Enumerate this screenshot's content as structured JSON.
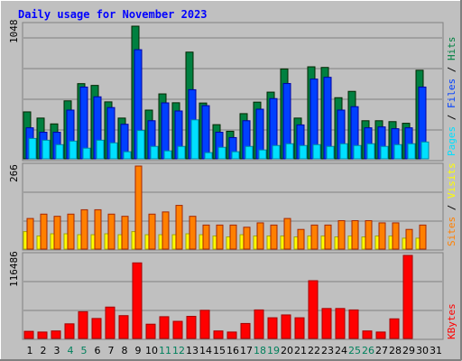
{
  "title": "Daily usage for November 2023",
  "colors": {
    "background": "#c0c0c0",
    "hits": "#008040",
    "files": "#0040ff",
    "pages": "#00e0ff",
    "visits": "#ffff00",
    "sites": "#ff8000",
    "kbytes": "#ff0000",
    "title": "#0000ff",
    "weekend_day": "#00805c",
    "grid": "#808080"
  },
  "chart_data": [
    {
      "type": "bar",
      "name": "hits-files-pages",
      "categories": [
        "1",
        "2",
        "3",
        "4",
        "5",
        "6",
        "7",
        "8",
        "9",
        "10",
        "11",
        "12",
        "13",
        "14",
        "15",
        "16",
        "17",
        "18",
        "19",
        "20",
        "21",
        "22",
        "23",
        "24",
        "25",
        "26",
        "27",
        "28",
        "29",
        "30",
        "31"
      ],
      "weekend_days": [
        "4",
        "5",
        "11",
        "12",
        "18",
        "19",
        "25",
        "26"
      ],
      "y_max_label": "1048",
      "ylim": [
        0,
        1048
      ],
      "legend": [
        {
          "name": "Hits",
          "color_key": "hits"
        },
        {
          "name": "Files",
          "color_key": "files"
        },
        {
          "name": "Pages",
          "color_key": "pages"
        }
      ],
      "series": [
        {
          "name": "Hits",
          "values": [
            371,
            322,
            276,
            458,
            594,
            580,
            450,
            322,
            1048,
            385,
            513,
            443,
            843,
            441,
            270,
            218,
            357,
            448,
            527,
            710,
            322,
            727,
            722,
            483,
            533,
            301,
            301,
            294,
            281,
            700,
            0
          ]
        },
        {
          "name": "Files",
          "values": [
            245,
            210,
            210,
            385,
            567,
            490,
            405,
            273,
            862,
            301,
            442,
            378,
            546,
            420,
            210,
            168,
            301,
            392,
            476,
            595,
            268,
            630,
            644,
            385,
            412,
            245,
            252,
            238,
            245,
            567,
            0
          ]
        },
        {
          "name": "Pages",
          "values": [
            161,
            147,
            112,
            140,
            84,
            147,
            126,
            56,
            224,
            98,
            63,
            98,
            308,
            49,
            91,
            56,
            98,
            70,
            105,
            119,
            105,
            112,
            98,
            119,
            105,
            119,
            98,
            112,
            119,
            133,
            0
          ]
        }
      ]
    },
    {
      "type": "bar",
      "name": "visits-sites",
      "categories": [
        "1",
        "2",
        "3",
        "4",
        "5",
        "6",
        "7",
        "8",
        "9",
        "10",
        "11",
        "12",
        "13",
        "14",
        "15",
        "16",
        "17",
        "18",
        "19",
        "20",
        "21",
        "22",
        "23",
        "24",
        "25",
        "26",
        "27",
        "28",
        "29",
        "30",
        "31"
      ],
      "y_max_label": "266",
      "ylim": [
        0,
        266
      ],
      "legend": [
        {
          "name": "Visits",
          "color_key": "visits"
        },
        {
          "name": "Sites",
          "color_key": "sites"
        }
      ],
      "series": [
        {
          "name": "Visits",
          "values": [
            56,
            42,
            49,
            49,
            46,
            46,
            49,
            46,
            56,
            46,
            46,
            46,
            49,
            46,
            42,
            39,
            46,
            42,
            42,
            42,
            39,
            42,
            42,
            39,
            42,
            39,
            42,
            42,
            35,
            35,
            0
          ]
        },
        {
          "name": "Sites",
          "values": [
            98,
            112,
            105,
            112,
            126,
            126,
            112,
            105,
            266,
            112,
            119,
            140,
            105,
            77,
            77,
            77,
            70,
            84,
            77,
            98,
            63,
            77,
            77,
            91,
            91,
            91,
            84,
            84,
            63,
            77,
            0
          ]
        }
      ]
    },
    {
      "type": "bar",
      "name": "kbytes",
      "categories": [
        "1",
        "2",
        "3",
        "4",
        "5",
        "6",
        "7",
        "8",
        "9",
        "10",
        "11",
        "12",
        "13",
        "14",
        "15",
        "16",
        "17",
        "18",
        "19",
        "20",
        "21",
        "22",
        "23",
        "24",
        "25",
        "26",
        "27",
        "28",
        "29",
        "30",
        "31"
      ],
      "y_max_label": "116486",
      "ylim": [
        0,
        116486
      ],
      "legend": [
        {
          "name": "KBytes",
          "color_key": "kbytes"
        }
      ],
      "series": [
        {
          "name": "KBytes",
          "values": [
            10000,
            9000,
            10500,
            20500,
            37500,
            28000,
            44000,
            32000,
            106000,
            20000,
            30500,
            24000,
            31000,
            39500,
            10500,
            9000,
            21000,
            40000,
            29000,
            33000,
            29000,
            81000,
            42000,
            42000,
            40000,
            10500,
            9000,
            27500,
            116486,
            0,
            0
          ]
        }
      ]
    }
  ]
}
